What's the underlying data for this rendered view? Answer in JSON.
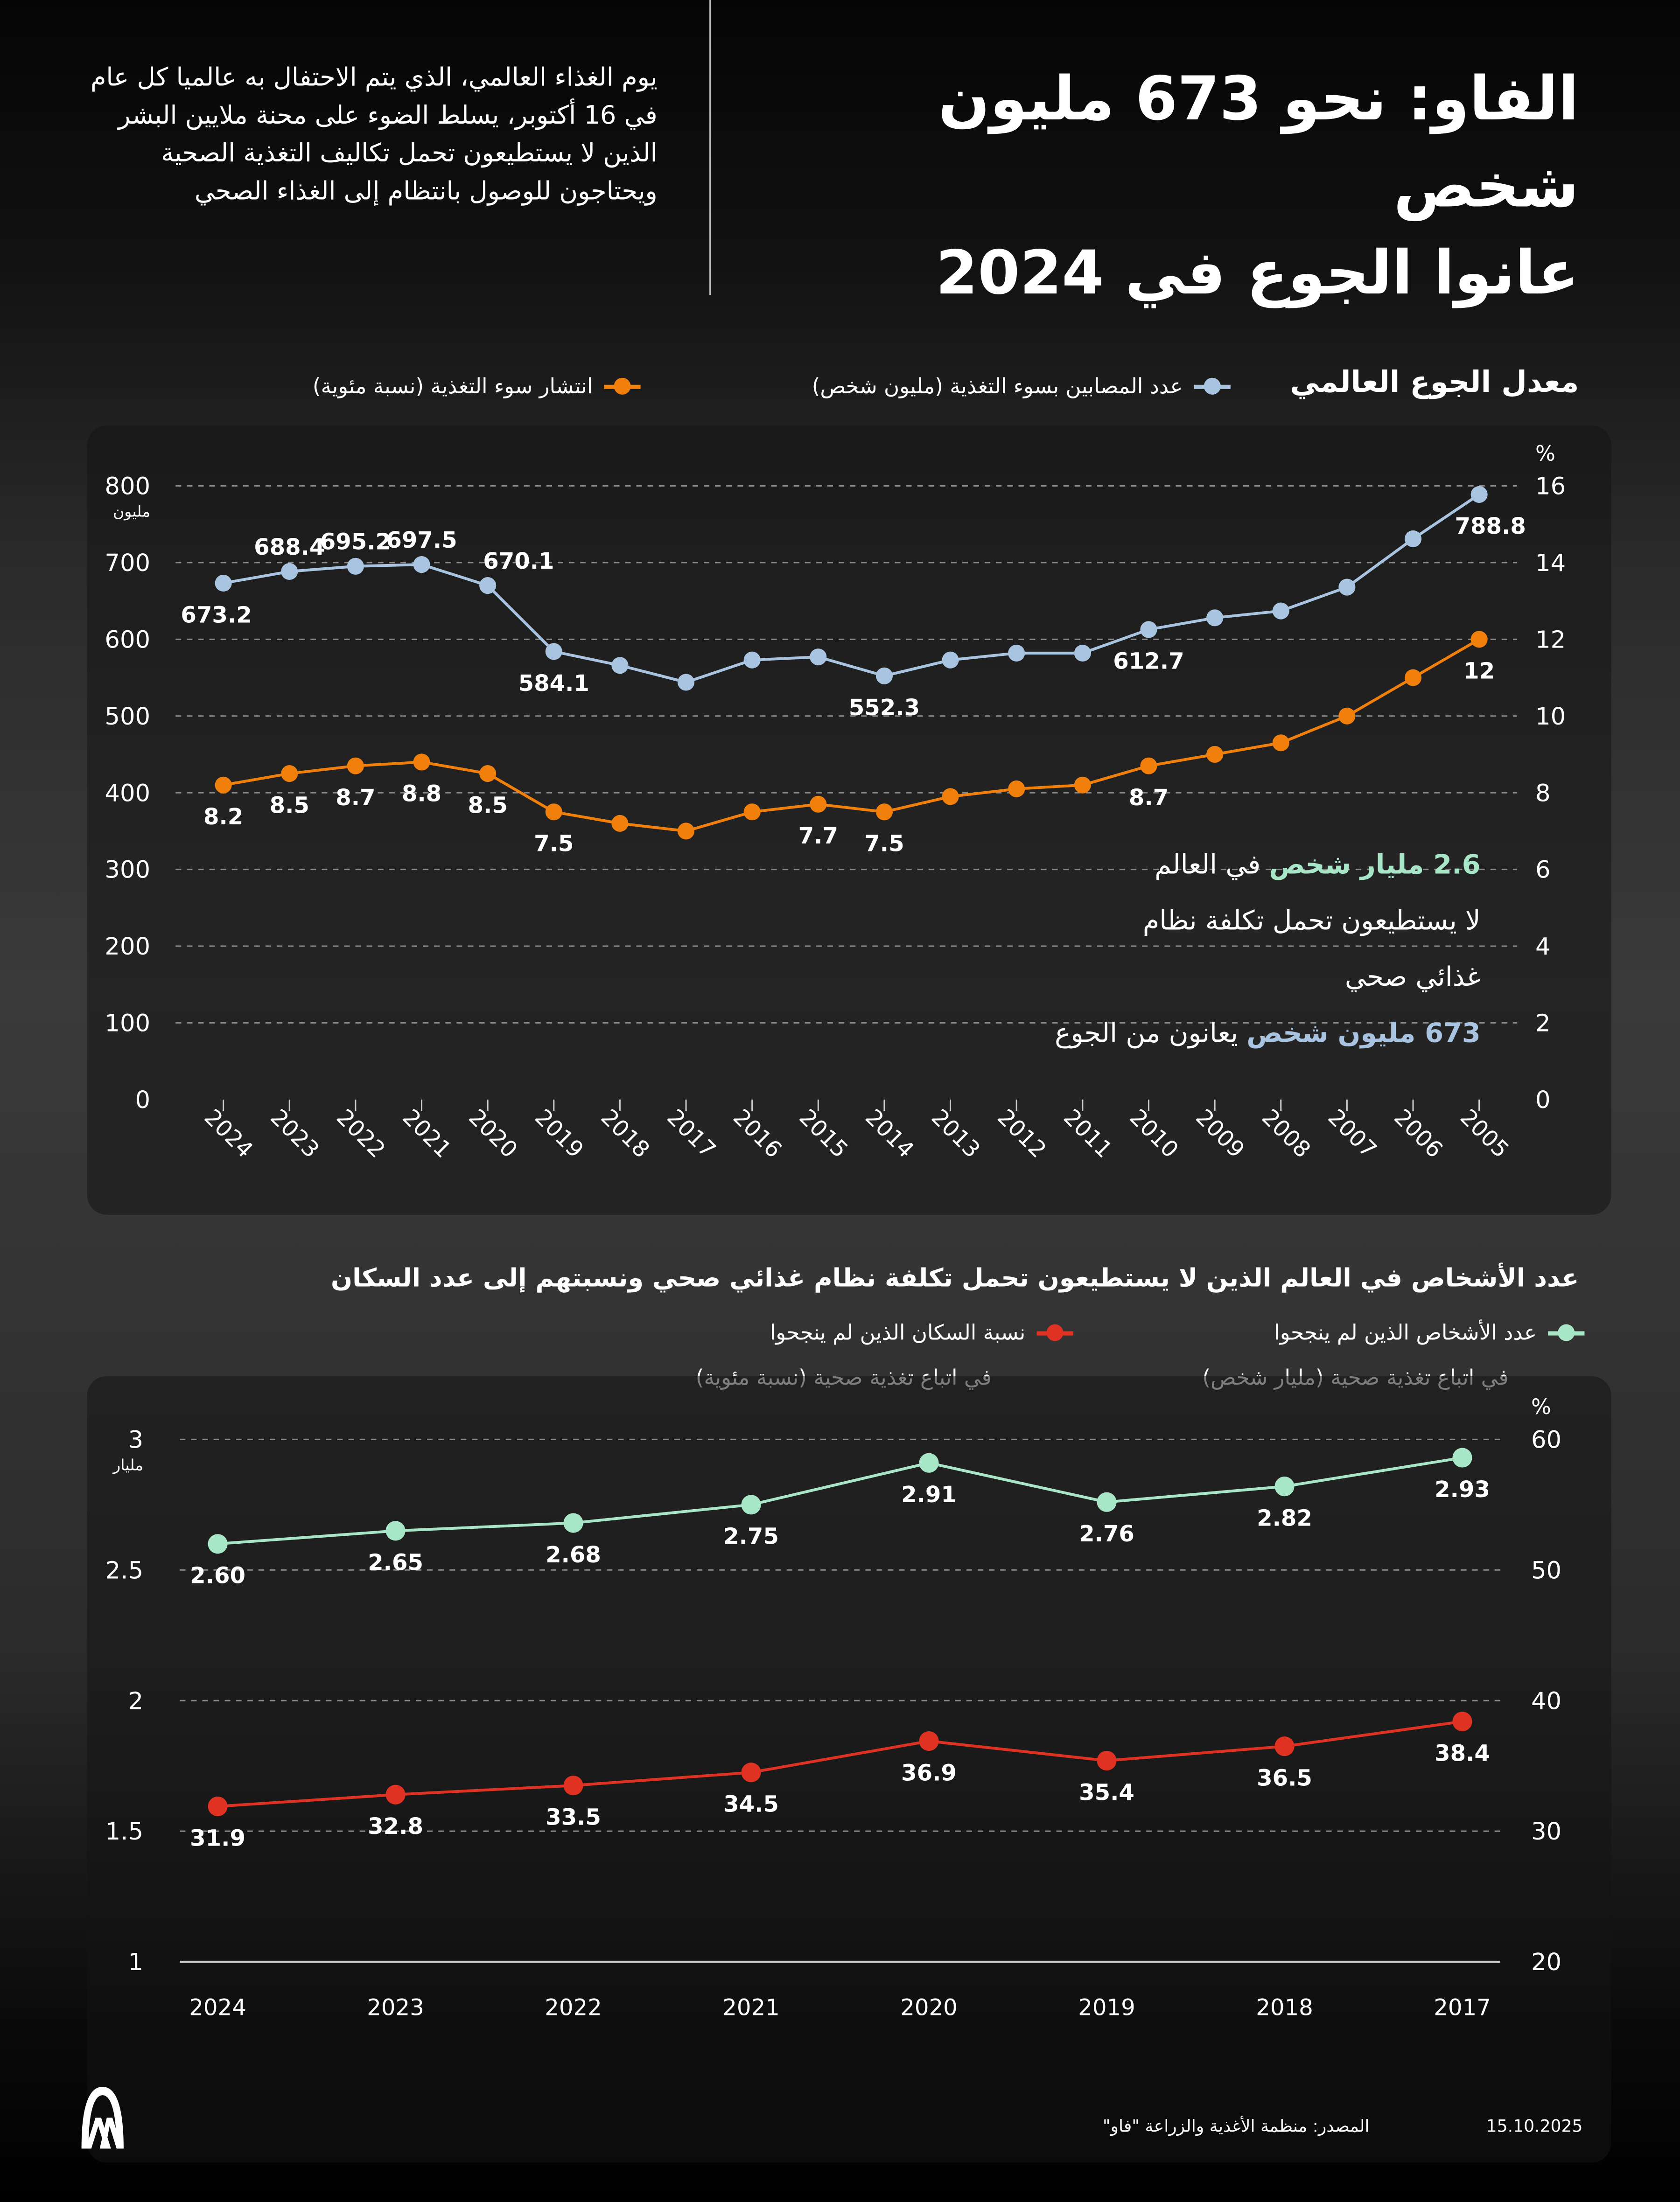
{
  "header": {
    "title_line1": "الفاو: نحو 673 مليون شخص",
    "title_line2": "عانوا الجوع في 2024",
    "intro": "يوم الغذاء العالمي، الذي يتم الاحتفال به عالميا كل عام في 16 أكتوبر، يسلط الضوء على محنة ملايين البشر الذين لا يستطيعون تحمل تكاليف التغذية الصحية ويحتاجون للوصول بانتظام إلى الغذاء الصحي"
  },
  "annotation": {
    "line1_highlight": "2.6 مليار شخص",
    "line1_rest": " في العالم",
    "line2": "لا يستطيعون تحمل تكلفة نظام",
    "line3": "غذائي صحي",
    "line4_highlight": "673 مليون شخص",
    "line4_rest": " يعانون من الجوع"
  },
  "footer": {
    "source": "المصدر: منظمة الأغذية والزراعة \"فاو\"",
    "date": "15.10.2025",
    "logo_text": "AA"
  },
  "chart_data": [
    {
      "type": "line",
      "title": "معدل الجوع العالمي",
      "legend_position": "top",
      "grid": true,
      "x": [
        "2024",
        "2023",
        "2022",
        "2021",
        "2020",
        "2019",
        "2018",
        "2017",
        "2016",
        "2015",
        "2014",
        "2013",
        "2012",
        "2011",
        "2010",
        "2009",
        "2008",
        "2007",
        "2006",
        "2005"
      ],
      "y_left": {
        "unit": "مليون",
        "ticks": [
          "0",
          "100",
          "200",
          "300",
          "400",
          "500",
          "600",
          "700",
          "800"
        ],
        "range": [
          0,
          800
        ]
      },
      "y_right": {
        "unit": "%",
        "ticks": [
          "0",
          "2",
          "4",
          "6",
          "8",
          "10",
          "12",
          "14",
          "16"
        ],
        "range": [
          0,
          16
        ]
      },
      "series": [
        {
          "name": "عدد المصابين بسوء التغذية (مليون شخص)",
          "axis": "left",
          "color": "#a9c4e0",
          "values": [
            673.2,
            688.4,
            695.2,
            697.5,
            670.1,
            584.1,
            566,
            544,
            573,
            577,
            552.3,
            573,
            582,
            582,
            612.7,
            628,
            637,
            668,
            731,
            788.8
          ],
          "labels": [
            "673.2",
            "688.4",
            "695.2",
            "697.5",
            "670.1",
            "584.1",
            "",
            "",
            "",
            "",
            "552.3",
            "",
            "",
            "",
            "612.7",
            "",
            "",
            "",
            "",
            "788.8"
          ]
        },
        {
          "name": "انتشار سوء التغذية (نسبة مئوية)",
          "axis": "right",
          "color": "#f07f0c",
          "values": [
            8.2,
            8.5,
            8.7,
            8.8,
            8.5,
            7.5,
            7.2,
            7.0,
            7.5,
            7.7,
            7.5,
            7.9,
            8.1,
            8.2,
            8.7,
            9.0,
            9.3,
            10.0,
            11.0,
            12
          ],
          "labels": [
            "8.2",
            "8.5",
            "8.7",
            "8.8",
            "8.5",
            "7.5",
            "",
            "",
            "",
            "7.7",
            "7.5",
            "",
            "",
            "",
            "8.7",
            "",
            "",
            "",
            "",
            "12"
          ]
        }
      ]
    },
    {
      "type": "line",
      "title": "عدد الأشخاص في العالم الذين لا يستطيعون تحمل تكلفة نظام غذائي صحي ونسبتهم إلى عدد السكان",
      "legend_position": "top",
      "grid": true,
      "x": [
        "2024",
        "2023",
        "2022",
        "2021",
        "2020",
        "2019",
        "2018",
        "2017"
      ],
      "y_left": {
        "unit": "مليار",
        "ticks": [
          "1",
          "1.5",
          "2",
          "2.5",
          "3"
        ],
        "range": [
          1,
          3
        ]
      },
      "y_right": {
        "unit": "%",
        "ticks": [
          "20",
          "30",
          "40",
          "50",
          "60"
        ],
        "range": [
          20,
          60
        ]
      },
      "series": [
        {
          "name": "عدد الأشخاص الذين لم ينجحوا",
          "name_line2": "في اتباع  تغذية صحية (مليار شخص)",
          "axis": "left",
          "color": "#a8e6c8",
          "values": [
            2.6,
            2.65,
            2.68,
            2.75,
            2.91,
            2.76,
            2.82,
            2.93
          ],
          "labels": [
            "2.60",
            "2.65",
            "2.68",
            "2.75",
            "2.91",
            "2.76",
            "2.82",
            "2.93"
          ]
        },
        {
          "name": "نسبة السكان الذين لم ينجحوا",
          "name_line2": "في اتباع تغذية صحية (نسبة مئوية)",
          "axis": "right",
          "color": "#e03222",
          "values": [
            31.9,
            32.8,
            33.5,
            34.5,
            36.9,
            35.4,
            36.5,
            38.4
          ],
          "labels": [
            "31.9",
            "32.8",
            "33.5",
            "34.5",
            "36.9",
            "35.4",
            "36.5",
            "38.4"
          ]
        }
      ]
    }
  ]
}
